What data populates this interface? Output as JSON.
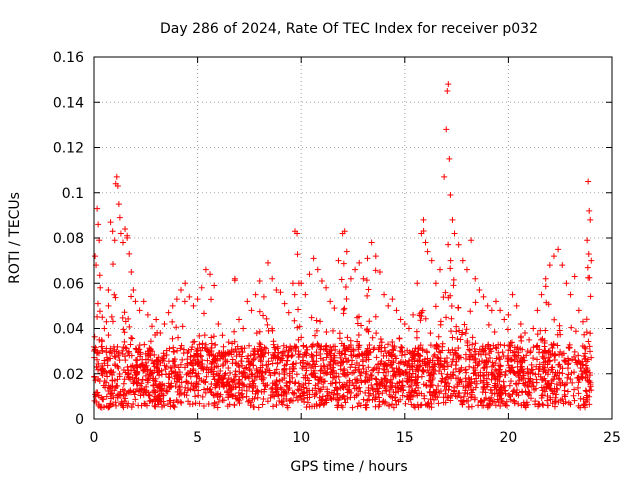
{
  "chart_data": {
    "type": "scatter",
    "title": "Day 286 of 2024, Rate Of TEC Index for receiver p032",
    "xlabel": "GPS time / hours",
    "ylabel": "ROTI / TECUs",
    "xlim": [
      0,
      25
    ],
    "ylim": [
      0,
      0.16
    ],
    "xticks": [
      0,
      5,
      10,
      15,
      20,
      25
    ],
    "xtick_labels": [
      "0",
      "5",
      "10",
      "15",
      "20",
      "25"
    ],
    "yticks": [
      0,
      0.02,
      0.04,
      0.06,
      0.08,
      0.1,
      0.12,
      0.14,
      0.16
    ],
    "ytick_labels": [
      "0",
      "0.02",
      "0.04",
      "0.06",
      "0.08",
      "0.1",
      "0.12",
      "0.14",
      "0.16"
    ],
    "grid": true,
    "marker": "+",
    "color": "#ff0000",
    "x_data_range": [
      0,
      24
    ],
    "series": [
      {
        "name": "ROTI",
        "points": [
          [
            0.05,
            0.072
          ],
          [
            0.1,
            0.068
          ],
          [
            0.15,
            0.093
          ],
          [
            0.2,
            0.086
          ],
          [
            0.25,
            0.079
          ],
          [
            0.3,
            0.058
          ],
          [
            0.4,
            0.045
          ],
          [
            0.5,
            0.04
          ],
          [
            0.6,
            0.043
          ],
          [
            0.7,
            0.05
          ],
          [
            0.8,
            0.087
          ],
          [
            0.9,
            0.083
          ],
          [
            1.0,
            0.079
          ],
          [
            1.05,
            0.104
          ],
          [
            1.1,
            0.107
          ],
          [
            1.15,
            0.103
          ],
          [
            1.2,
            0.095
          ],
          [
            1.25,
            0.089
          ],
          [
            1.3,
            0.082
          ],
          [
            1.4,
            0.078
          ],
          [
            1.5,
            0.084
          ],
          [
            1.6,
            0.081
          ],
          [
            1.7,
            0.073
          ],
          [
            1.8,
            0.065
          ],
          [
            1.9,
            0.057
          ],
          [
            2.0,
            0.052
          ],
          [
            2.2,
            0.048
          ],
          [
            2.4,
            0.052
          ],
          [
            2.6,
            0.046
          ],
          [
            2.8,
            0.041
          ],
          [
            3.0,
            0.044
          ],
          [
            3.2,
            0.038
          ],
          [
            3.4,
            0.042
          ],
          [
            3.6,
            0.047
          ],
          [
            3.8,
            0.05
          ],
          [
            4.0,
            0.053
          ],
          [
            4.2,
            0.057
          ],
          [
            4.4,
            0.06
          ],
          [
            4.6,
            0.054
          ],
          [
            4.8,
            0.05
          ],
          [
            5.0,
            0.053
          ],
          [
            5.2,
            0.058
          ],
          [
            5.4,
            0.066
          ],
          [
            5.6,
            0.064
          ],
          [
            5.8,
            0.059
          ],
          [
            6.0,
            0.042
          ],
          [
            6.2,
            0.037
          ],
          [
            6.5,
            0.034
          ],
          [
            6.8,
            0.062
          ],
          [
            7.0,
            0.044
          ],
          [
            7.2,
            0.04
          ],
          [
            7.4,
            0.052
          ],
          [
            7.6,
            0.048
          ],
          [
            7.8,
            0.055
          ],
          [
            8.0,
            0.061
          ],
          [
            8.2,
            0.054
          ],
          [
            8.4,
            0.069
          ],
          [
            8.6,
            0.062
          ],
          [
            8.8,
            0.057
          ],
          [
            9.0,
            0.056
          ],
          [
            9.2,
            0.051
          ],
          [
            9.4,
            0.047
          ],
          [
            9.6,
            0.06
          ],
          [
            9.7,
            0.083
          ],
          [
            9.8,
            0.082
          ],
          [
            10.0,
            0.06
          ],
          [
            10.2,
            0.055
          ],
          [
            10.4,
            0.064
          ],
          [
            10.6,
            0.071
          ],
          [
            10.8,
            0.066
          ],
          [
            11.0,
            0.061
          ],
          [
            11.2,
            0.058
          ],
          [
            11.4,
            0.052
          ],
          [
            11.6,
            0.049
          ],
          [
            11.8,
            0.07
          ],
          [
            12.0,
            0.082
          ],
          [
            12.1,
            0.083
          ],
          [
            12.2,
            0.074
          ],
          [
            12.4,
            0.062
          ],
          [
            12.6,
            0.066
          ],
          [
            12.8,
            0.069
          ],
          [
            13.0,
            0.062
          ],
          [
            13.2,
            0.071
          ],
          [
            13.4,
            0.078
          ],
          [
            13.6,
            0.072
          ],
          [
            13.8,
            0.065
          ],
          [
            14.0,
            0.055
          ],
          [
            14.2,
            0.05
          ],
          [
            14.4,
            0.053
          ],
          [
            14.6,
            0.048
          ],
          [
            14.8,
            0.044
          ],
          [
            15.0,
            0.042
          ],
          [
            15.2,
            0.04
          ],
          [
            15.4,
            0.046
          ],
          [
            15.6,
            0.06
          ],
          [
            15.8,
            0.082
          ],
          [
            15.9,
            0.088
          ],
          [
            16.0,
            0.078
          ],
          [
            16.1,
            0.074
          ],
          [
            16.3,
            0.07
          ],
          [
            16.5,
            0.06
          ],
          [
            16.7,
            0.066
          ],
          [
            16.9,
            0.107
          ],
          [
            17.0,
            0.128
          ],
          [
            17.05,
            0.145
          ],
          [
            17.1,
            0.148
          ],
          [
            17.15,
            0.115
          ],
          [
            17.2,
            0.099
          ],
          [
            17.3,
            0.088
          ],
          [
            17.4,
            0.082
          ],
          [
            17.6,
            0.077
          ],
          [
            17.8,
            0.07
          ],
          [
            18.0,
            0.066
          ],
          [
            18.2,
            0.079
          ],
          [
            18.4,
            0.062
          ],
          [
            18.6,
            0.057
          ],
          [
            18.8,
            0.054
          ],
          [
            19.0,
            0.05
          ],
          [
            19.2,
            0.048
          ],
          [
            19.4,
            0.052
          ],
          [
            19.6,
            0.048
          ],
          [
            19.8,
            0.044
          ],
          [
            20.0,
            0.046
          ],
          [
            20.2,
            0.055
          ],
          [
            20.4,
            0.05
          ],
          [
            20.6,
            0.042
          ],
          [
            20.8,
            0.038
          ],
          [
            21.0,
            0.035
          ],
          [
            21.2,
            0.04
          ],
          [
            21.4,
            0.048
          ],
          [
            21.6,
            0.055
          ],
          [
            21.8,
            0.062
          ],
          [
            22.0,
            0.068
          ],
          [
            22.2,
            0.072
          ],
          [
            22.4,
            0.075
          ],
          [
            22.6,
            0.068
          ],
          [
            22.8,
            0.06
          ],
          [
            23.0,
            0.055
          ],
          [
            23.2,
            0.063
          ],
          [
            23.4,
            0.048
          ],
          [
            23.6,
            0.043
          ],
          [
            23.8,
            0.079
          ],
          [
            23.85,
            0.105
          ],
          [
            23.9,
            0.092
          ],
          [
            23.95,
            0.088
          ],
          [
            24.0,
            0.07
          ]
        ]
      }
    ]
  }
}
